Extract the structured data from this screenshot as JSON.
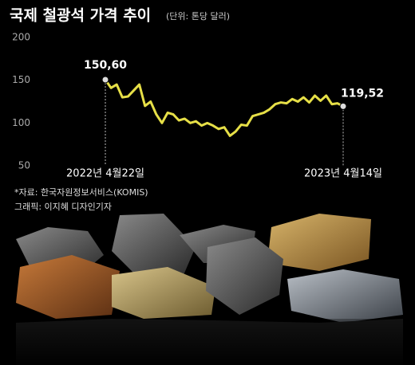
{
  "chart_data": {
    "type": "line",
    "title": "국제 철광석 가격 추이",
    "subtitle": "(단위: 톤당 달러)",
    "source": "*자료: 한국자원정보서비스(KOMIS)",
    "credit": "그래픽: 이지혜 디자인기자",
    "categories": [
      "2022년 4월22일",
      null,
      null,
      null,
      null,
      null,
      null,
      null,
      null,
      null,
      null,
      null,
      null,
      null,
      null,
      null,
      null,
      null,
      null,
      null,
      null,
      null,
      null,
      null,
      null,
      null,
      null,
      null,
      null,
      null,
      null,
      null,
      null,
      null,
      null,
      null,
      null,
      null,
      null,
      null,
      null,
      null,
      "2023년 4월14일"
    ],
    "values": [
      150.6,
      141,
      145,
      130,
      131,
      138,
      145,
      120,
      125,
      110,
      100,
      112,
      110,
      103,
      105,
      100,
      102,
      97,
      100,
      97,
      93,
      95,
      85,
      90,
      98,
      97,
      108,
      110,
      112,
      116,
      122,
      124,
      123,
      128,
      125,
      130,
      124,
      132,
      126,
      132,
      122,
      123,
      119.52
    ],
    "value_labels": [
      "150,60",
      null,
      null,
      null,
      null,
      null,
      null,
      null,
      null,
      null,
      null,
      null,
      null,
      null,
      null,
      null,
      null,
      null,
      null,
      null,
      null,
      null,
      null,
      null,
      null,
      null,
      null,
      null,
      null,
      null,
      null,
      null,
      null,
      null,
      null,
      null,
      null,
      null,
      null,
      null,
      null,
      null,
      "119,52"
    ],
    "color": "#e6df47",
    "ylim": [
      50,
      200
    ],
    "yticks": [
      50,
      100,
      150,
      200
    ]
  }
}
